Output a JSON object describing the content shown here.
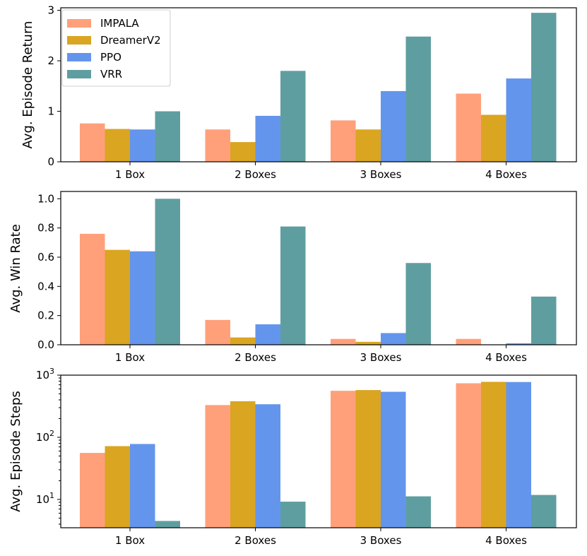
{
  "chart_data": [
    {
      "type": "bar",
      "title": "",
      "xlabel": "",
      "ylabel": "Avg. Episode Return",
      "yscale": "linear",
      "ylim": [
        0,
        3.05
      ],
      "yticks": [
        0,
        1,
        2,
        3
      ],
      "ytick_labels": [
        "0",
        "1",
        "2",
        "3"
      ],
      "categories": [
        "1 Box",
        "2 Boxes",
        "3 Boxes",
        "4 Boxes"
      ],
      "series": [
        {
          "name": "IMPALA",
          "values": [
            0.76,
            0.64,
            0.82,
            1.35
          ]
        },
        {
          "name": "DreamerV2",
          "values": [
            0.65,
            0.39,
            0.64,
            0.93
          ]
        },
        {
          "name": "PPO",
          "values": [
            0.64,
            0.91,
            1.4,
            1.65
          ]
        },
        {
          "name": "VRR",
          "values": [
            1.0,
            1.8,
            2.48,
            2.95
          ]
        }
      ],
      "legend": {
        "location": "upper-left"
      }
    },
    {
      "type": "bar",
      "title": "",
      "xlabel": "",
      "ylabel": "Avg. Win Rate",
      "yscale": "linear",
      "ylim": [
        0,
        1.05
      ],
      "yticks": [
        0,
        0.2,
        0.4,
        0.6,
        0.8,
        1.0
      ],
      "ytick_labels": [
        "0.0",
        "0.2",
        "0.4",
        "0.6",
        "0.8",
        "1.0"
      ],
      "categories": [
        "1 Box",
        "2 Boxes",
        "3 Boxes",
        "4 Boxes"
      ],
      "series": [
        {
          "name": "IMPALA",
          "values": [
            0.76,
            0.17,
            0.04,
            0.04
          ]
        },
        {
          "name": "DreamerV2",
          "values": [
            0.65,
            0.05,
            0.02,
            0.0
          ]
        },
        {
          "name": "PPO",
          "values": [
            0.64,
            0.14,
            0.08,
            0.01
          ]
        },
        {
          "name": "VRR",
          "values": [
            1.0,
            0.81,
            0.56,
            0.33
          ]
        }
      ]
    },
    {
      "type": "bar",
      "title": "",
      "xlabel": "",
      "ylabel": "Avg. Episode Steps",
      "yscale": "log",
      "ylim": [
        3.5,
        1000
      ],
      "yticks": [
        10,
        100,
        1000
      ],
      "ytick_labels": [
        {
          "base": "10",
          "exp": "1"
        },
        {
          "base": "10",
          "exp": "2"
        },
        {
          "base": "10",
          "exp": "3"
        }
      ],
      "categories": [
        "1 Box",
        "2 Boxes",
        "3 Boxes",
        "4 Boxes"
      ],
      "series": [
        {
          "name": "IMPALA",
          "values": [
            56,
            330,
            560,
            740
          ]
        },
        {
          "name": "DreamerV2",
          "values": [
            72,
            380,
            575,
            780
          ]
        },
        {
          "name": "PPO",
          "values": [
            78,
            340,
            540,
            775
          ]
        },
        {
          "name": "VRR",
          "values": [
            4.5,
            9.2,
            11.2,
            11.8
          ]
        }
      ]
    }
  ],
  "colors": {
    "IMPALA": "#ffa07a",
    "DreamerV2": "#daa520",
    "PPO": "#6495ed",
    "VRR": "#5f9ea0"
  }
}
